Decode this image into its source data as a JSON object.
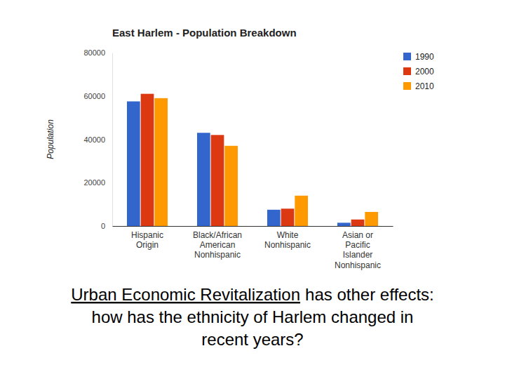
{
  "chart_data": {
    "type": "bar",
    "title": "East Harlem - Population Breakdown",
    "y_label": "Population",
    "categories": [
      "Hispanic\nOrigin",
      "Black/African\nAmerican\nNonhispanic",
      "White\nNonhispanic",
      "Asian or\nPacific\nIslander\nNonhispanic"
    ],
    "series": [
      {
        "name": "1990",
        "color": "#3366cc",
        "values": [
          57500,
          43000,
          7500,
          1500
        ]
      },
      {
        "name": "2000",
        "color": "#dc3912",
        "values": [
          61000,
          42000,
          8000,
          3000
        ]
      },
      {
        "name": "2010",
        "color": "#ff9900",
        "values": [
          59000,
          37000,
          14000,
          6500
        ]
      }
    ],
    "ylim": [
      0,
      80000
    ],
    "yticks": [
      0,
      20000,
      40000,
      60000,
      80000
    ],
    "grid": false,
    "legend": "right",
    "annotations": [
      "Urban Economic Revitalization",
      "has other effects:",
      "how has the ethnicity of Harlem changed in",
      "recent years?"
    ]
  }
}
